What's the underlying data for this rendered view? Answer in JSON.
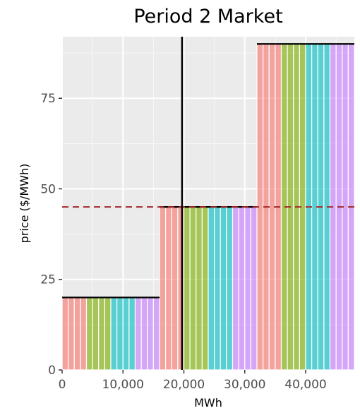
{
  "chart_data": {
    "type": "bar",
    "title": "Period 2 Market",
    "xlabel": "MWh",
    "ylabel": "price ($/MWh)",
    "xlim": [
      0,
      48000
    ],
    "ylim": [
      0,
      92
    ],
    "x_ticks": [
      0,
      10000,
      20000,
      30000,
      40000
    ],
    "x_tick_labels": [
      "0",
      "10,000",
      "20,000",
      "30,000",
      "40,000"
    ],
    "y_ticks": [
      0,
      25,
      50,
      75
    ],
    "y_tick_labels": [
      "0",
      "25",
      "50",
      "75"
    ],
    "grid": true,
    "legend": "none",
    "series_colors": [
      "#f8766d",
      "#7cae00",
      "#00bfc4",
      "#c77cff"
    ],
    "supply_blocks": [
      {
        "price": 20,
        "segments": [
          {
            "x0": 0,
            "x1": 4000,
            "color": "#f8766d"
          },
          {
            "x0": 4000,
            "x1": 8000,
            "color": "#7cae00"
          },
          {
            "x0": 8000,
            "x1": 12000,
            "color": "#00bfc4"
          },
          {
            "x0": 12000,
            "x1": 16000,
            "color": "#c77cff"
          }
        ]
      },
      {
        "price": 45,
        "segments": [
          {
            "x0": 16000,
            "x1": 20000,
            "color": "#f8766d"
          },
          {
            "x0": 20000,
            "x1": 24000,
            "color": "#7cae00"
          },
          {
            "x0": 24000,
            "x1": 28000,
            "color": "#00bfc4"
          },
          {
            "x0": 28000,
            "x1": 32000,
            "color": "#c77cff"
          }
        ]
      },
      {
        "price": 90,
        "segments": [
          {
            "x0": 32000,
            "x1": 36000,
            "color": "#f8766d"
          },
          {
            "x0": 36000,
            "x1": 40000,
            "color": "#7cae00"
          },
          {
            "x0": 40000,
            "x1": 44000,
            "color": "#00bfc4"
          },
          {
            "x0": 44000,
            "x1": 48000,
            "color": "#c77cff"
          }
        ]
      }
    ],
    "demand_line_x": 19700,
    "clearing_price": 45
  }
}
